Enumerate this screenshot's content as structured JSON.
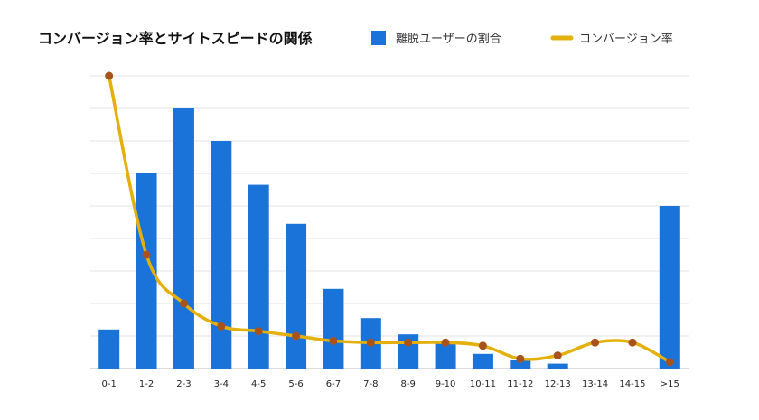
{
  "chart_data": {
    "type": "bar",
    "title": "コンバージョン率とサイトスピードの関係",
    "xlabel": "",
    "ylabel": "",
    "categories": [
      "0-1",
      "1-2",
      "2-3",
      "3-4",
      "4-5",
      "5-6",
      "6-7",
      "7-8",
      "8-9",
      "9-10",
      "10-11",
      "11-12",
      "12-13",
      "13-14",
      "14-15",
      ">15"
    ],
    "ylim": [
      0,
      9
    ],
    "grid": true,
    "legend_position": "top-right",
    "series": [
      {
        "name": "離脱ユーザーの割合",
        "type": "bar",
        "color": "#1a73d9",
        "values": [
          1.2,
          6.0,
          8.0,
          7.0,
          5.65,
          4.45,
          2.45,
          1.55,
          1.05,
          0.85,
          0.45,
          0.25,
          0.15,
          0.0,
          0.0,
          5.0
        ]
      },
      {
        "name": "コンバージョン率",
        "type": "line",
        "color": "#e3b00c",
        "marker_color": "#a9531c",
        "values": [
          9.0,
          3.5,
          2.0,
          1.3,
          1.15,
          1.0,
          0.85,
          0.8,
          0.8,
          0.8,
          0.7,
          0.3,
          0.4,
          0.8,
          0.8,
          0.2
        ]
      }
    ]
  }
}
